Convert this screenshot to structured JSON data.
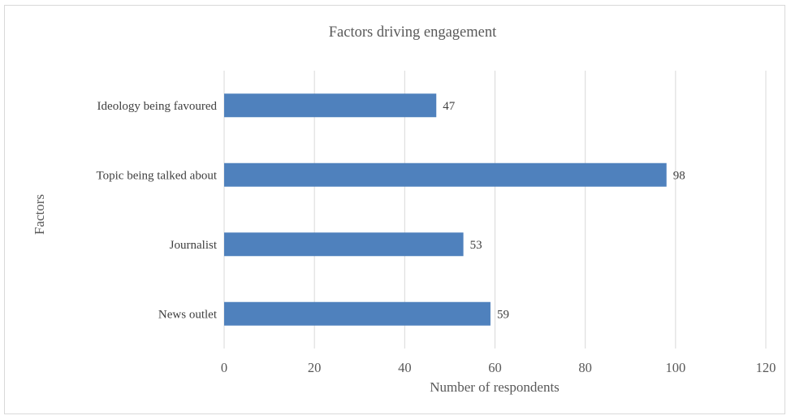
{
  "chart_data": {
    "type": "bar",
    "orientation": "horizontal",
    "title": "Factors driving engagement",
    "xlabel": "Number of respondents",
    "ylabel": "Factors",
    "categories": [
      "Ideology being favoured",
      "Topic being talked about",
      "Journalist",
      "News outlet"
    ],
    "values": [
      47,
      98,
      53,
      59
    ],
    "xlim": [
      0,
      120
    ],
    "xticks": [
      0,
      20,
      40,
      60,
      80,
      100,
      120
    ],
    "grid": "vertical",
    "legend": "none",
    "bar_color": "#4f81bd",
    "grid_color": "#d9d9d9",
    "text_color": "#595959"
  }
}
